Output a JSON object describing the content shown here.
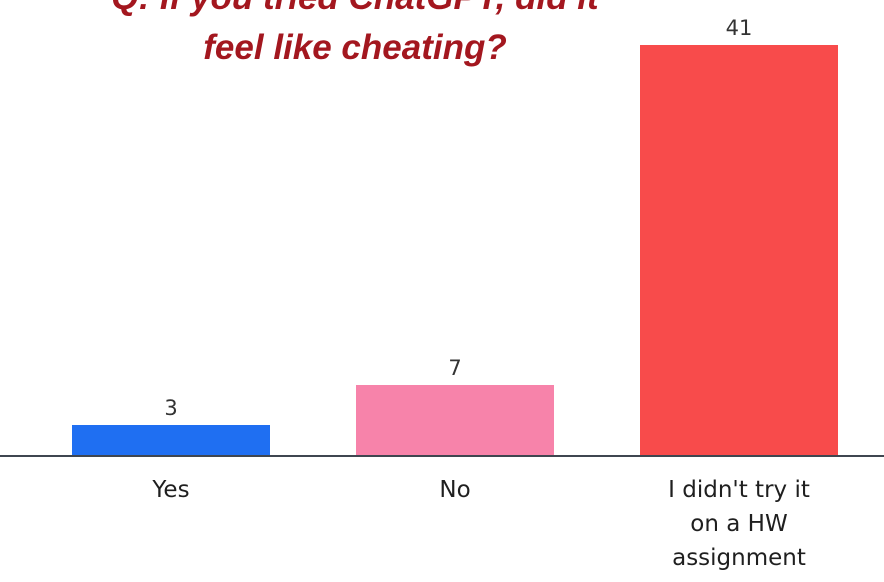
{
  "chart_data": {
    "type": "bar",
    "title_lines": [
      "Q: If you tried ChatGPT, did it",
      "feel like cheating?"
    ],
    "categories": [
      [
        "Yes"
      ],
      [
        "No"
      ],
      [
        "I didn't try it",
        "on a HW",
        "assignment"
      ]
    ],
    "values": [
      3,
      7,
      41
    ],
    "data_labels": [
      "3",
      "7",
      "41"
    ],
    "colors": [
      "#1f6ff2",
      "#f783aa",
      "#f84b4b"
    ],
    "ylim": [
      0,
      41
    ],
    "grid": false,
    "legend": "none"
  }
}
